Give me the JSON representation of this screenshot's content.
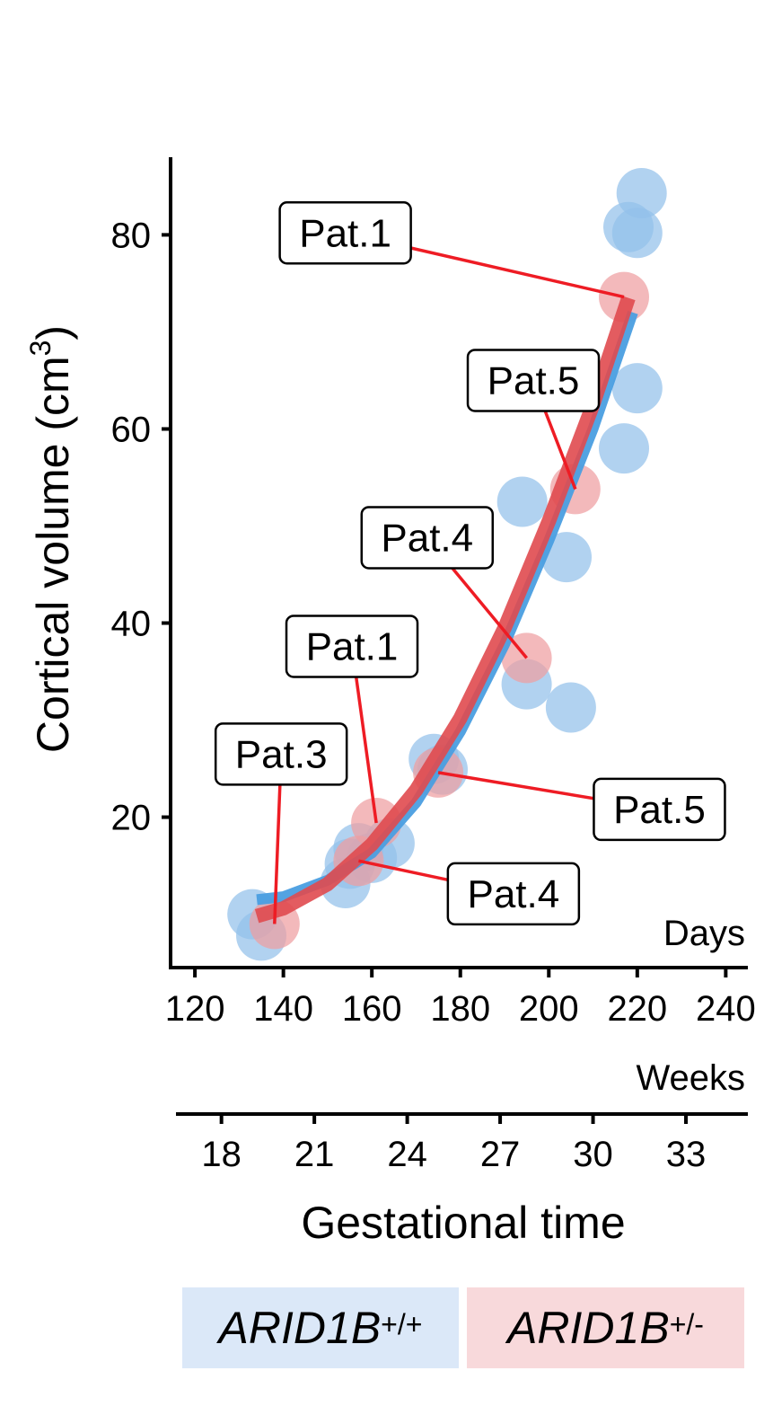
{
  "chart_data": {
    "type": "scatter",
    "ylabel": "Cortical volume (cm",
    "ylabel_sup": "3",
    "ylabel_close": ")",
    "xlabel": "Gestational time",
    "days_label": "Days",
    "weeks_label": "Weeks",
    "x_days_ticks": [
      120,
      140,
      160,
      180,
      200,
      220,
      240
    ],
    "x_weeks_ticks": [
      18,
      21,
      24,
      27,
      30,
      33
    ],
    "y_ticks": [
      20,
      40,
      60,
      80
    ],
    "xlim_days": [
      114.5,
      245
    ],
    "ylim": [
      4.5,
      88
    ],
    "series": [
      {
        "name": "ARID1B",
        "sup": "+/+",
        "color": "#93c0ea",
        "line_color": "#4a9ee0",
        "legend_bg": "#dbe8f8",
        "points": [
          {
            "x": 133,
            "y": 10.0
          },
          {
            "x": 135,
            "y": 7.8
          },
          {
            "x": 154,
            "y": 13.2
          },
          {
            "x": 155,
            "y": 15.2
          },
          {
            "x": 157,
            "y": 16.8
          },
          {
            "x": 160,
            "y": 15.8
          },
          {
            "x": 164,
            "y": 17.3
          },
          {
            "x": 174,
            "y": 26.0
          },
          {
            "x": 176,
            "y": 24.9
          },
          {
            "x": 194,
            "y": 52.5
          },
          {
            "x": 195,
            "y": 33.7
          },
          {
            "x": 204,
            "y": 46.8
          },
          {
            "x": 205,
            "y": 31.3
          },
          {
            "x": 217,
            "y": 58.0
          },
          {
            "x": 218,
            "y": 80.8
          },
          {
            "x": 220,
            "y": 80.2
          },
          {
            "x": 220,
            "y": 64.2
          },
          {
            "x": 221,
            "y": 84.3
          }
        ],
        "curve": [
          {
            "x": 134,
            "y": 11.5
          },
          {
            "x": 140,
            "y": 11.8
          },
          {
            "x": 150,
            "y": 13.5
          },
          {
            "x": 160,
            "y": 16.3
          },
          {
            "x": 170,
            "y": 21.5
          },
          {
            "x": 180,
            "y": 28.8
          },
          {
            "x": 190,
            "y": 37.8
          },
          {
            "x": 200,
            "y": 48.5
          },
          {
            "x": 210,
            "y": 60.0
          },
          {
            "x": 219,
            "y": 72.0
          }
        ]
      },
      {
        "name": "ARID1B",
        "sup": "+/-",
        "color": "#ef9ea1",
        "line_color": "#e04a4f",
        "legend_bg": "#f8d9db",
        "points": [
          {
            "x": 138,
            "y": 9.0
          },
          {
            "x": 157,
            "y": 15.5
          },
          {
            "x": 161,
            "y": 19.4
          },
          {
            "x": 175,
            "y": 24.6
          },
          {
            "x": 195,
            "y": 36.4
          },
          {
            "x": 206,
            "y": 53.8
          },
          {
            "x": 217,
            "y": 73.6
          }
        ],
        "curve": [
          {
            "x": 134,
            "y": 9.8
          },
          {
            "x": 140,
            "y": 10.6
          },
          {
            "x": 150,
            "y": 13.1
          },
          {
            "x": 160,
            "y": 17.2
          },
          {
            "x": 170,
            "y": 22.8
          },
          {
            "x": 180,
            "y": 30.2
          },
          {
            "x": 190,
            "y": 39.5
          },
          {
            "x": 200,
            "y": 50.5
          },
          {
            "x": 210,
            "y": 62.5
          },
          {
            "x": 218,
            "y": 73.5
          }
        ]
      }
    ],
    "annotations": [
      {
        "text": "Pat.1",
        "x": 217,
        "y": 73.6,
        "label_x": 154,
        "label_y": 80.2
      },
      {
        "text": "Pat.5",
        "x": 206,
        "y": 53.8,
        "label_x": 196.5,
        "label_y": 65.0
      },
      {
        "text": "Pat.4",
        "x": 195,
        "y": 36.4,
        "label_x": 172.5,
        "label_y": 48.8
      },
      {
        "text": "Pat.1",
        "x": 161,
        "y": 19.4,
        "label_x": 155.5,
        "label_y": 37.6
      },
      {
        "text": "Pat.3",
        "x": 138,
        "y": 9.0,
        "label_x": 139.5,
        "label_y": 26.5
      },
      {
        "text": "Pat.5",
        "x": 175,
        "y": 24.6,
        "label_x": 225,
        "label_y": 20.8
      },
      {
        "text": "Pat.4",
        "x": 157,
        "y": 15.5,
        "label_x": 192,
        "label_y": 12.1
      }
    ],
    "annotation_line_color": "#ee1c24",
    "legend_position": "bottom"
  }
}
